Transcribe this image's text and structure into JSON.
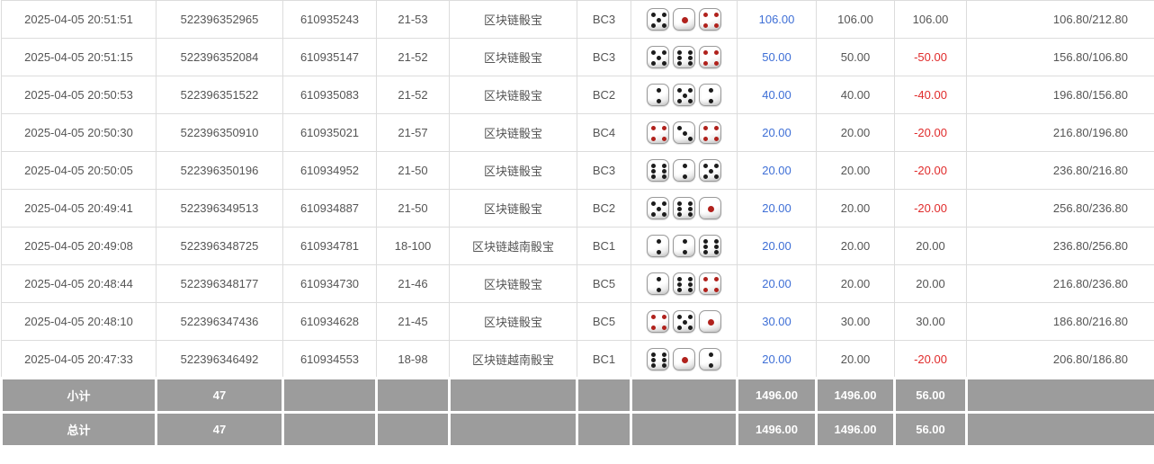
{
  "colors": {
    "bet_link_blue": "#3e6fd6",
    "negative_red": "#e02b2b",
    "body_text": "#555555",
    "footer_bg": "#9c9c9c",
    "grid_line": "#dcdcdc",
    "red_pip": "#b0211c",
    "black_pip": "#1c1c1c"
  },
  "rows": [
    {
      "time": "2025-04-05 20:51:51",
      "bet_no": "522396352965",
      "round_no": "610935243",
      "period": "21-53",
      "game": "区块链骰宝",
      "table": "BC3",
      "dice": [
        {
          "value": 5,
          "color": "black"
        },
        {
          "value": 1,
          "color": "red"
        },
        {
          "value": 4,
          "color": "red"
        }
      ],
      "bet": "106.00",
      "valid": "106.00",
      "winloss": "106.00",
      "balance": "106.80/212.80"
    },
    {
      "time": "2025-04-05 20:51:15",
      "bet_no": "522396352084",
      "round_no": "610935147",
      "period": "21-52",
      "game": "区块链骰宝",
      "table": "BC3",
      "dice": [
        {
          "value": 5,
          "color": "black"
        },
        {
          "value": 6,
          "color": "black"
        },
        {
          "value": 4,
          "color": "red"
        }
      ],
      "bet": "50.00",
      "valid": "50.00",
      "winloss": "-50.00",
      "balance": "156.80/106.80"
    },
    {
      "time": "2025-04-05 20:50:53",
      "bet_no": "522396351522",
      "round_no": "610935083",
      "period": "21-52",
      "game": "区块链骰宝",
      "table": "BC2",
      "dice": [
        {
          "value": 2,
          "color": "black"
        },
        {
          "value": 5,
          "color": "black"
        },
        {
          "value": 2,
          "color": "black"
        }
      ],
      "bet": "40.00",
      "valid": "40.00",
      "winloss": "-40.00",
      "balance": "196.80/156.80"
    },
    {
      "time": "2025-04-05 20:50:30",
      "bet_no": "522396350910",
      "round_no": "610935021",
      "period": "21-57",
      "game": "区块链骰宝",
      "table": "BC4",
      "dice": [
        {
          "value": 4,
          "color": "red"
        },
        {
          "value": 3,
          "color": "black"
        },
        {
          "value": 4,
          "color": "red"
        }
      ],
      "bet": "20.00",
      "valid": "20.00",
      "winloss": "-20.00",
      "balance": "216.80/196.80"
    },
    {
      "time": "2025-04-05 20:50:05",
      "bet_no": "522396350196",
      "round_no": "610934952",
      "period": "21-50",
      "game": "区块链骰宝",
      "table": "BC3",
      "dice": [
        {
          "value": 6,
          "color": "black"
        },
        {
          "value": 2,
          "color": "black"
        },
        {
          "value": 5,
          "color": "black"
        }
      ],
      "bet": "20.00",
      "valid": "20.00",
      "winloss": "-20.00",
      "balance": "236.80/216.80"
    },
    {
      "time": "2025-04-05 20:49:41",
      "bet_no": "522396349513",
      "round_no": "610934887",
      "period": "21-50",
      "game": "区块链骰宝",
      "table": "BC2",
      "dice": [
        {
          "value": 5,
          "color": "black"
        },
        {
          "value": 6,
          "color": "black"
        },
        {
          "value": 1,
          "color": "red"
        }
      ],
      "bet": "20.00",
      "valid": "20.00",
      "winloss": "-20.00",
      "balance": "256.80/236.80"
    },
    {
      "time": "2025-04-05 20:49:08",
      "bet_no": "522396348725",
      "round_no": "610934781",
      "period": "18-100",
      "game": "区块链越南骰宝",
      "table": "BC1",
      "dice": [
        {
          "value": 2,
          "color": "black"
        },
        {
          "value": 2,
          "color": "black"
        },
        {
          "value": 6,
          "color": "black"
        }
      ],
      "bet": "20.00",
      "valid": "20.00",
      "winloss": "20.00",
      "balance": "236.80/256.80"
    },
    {
      "time": "2025-04-05 20:48:44",
      "bet_no": "522396348177",
      "round_no": "610934730",
      "period": "21-46",
      "game": "区块链骰宝",
      "table": "BC5",
      "dice": [
        {
          "value": 2,
          "color": "black"
        },
        {
          "value": 6,
          "color": "black"
        },
        {
          "value": 4,
          "color": "red"
        }
      ],
      "bet": "20.00",
      "valid": "20.00",
      "winloss": "20.00",
      "balance": "216.80/236.80"
    },
    {
      "time": "2025-04-05 20:48:10",
      "bet_no": "522396347436",
      "round_no": "610934628",
      "period": "21-45",
      "game": "区块链骰宝",
      "table": "BC5",
      "dice": [
        {
          "value": 4,
          "color": "red"
        },
        {
          "value": 5,
          "color": "black"
        },
        {
          "value": 1,
          "color": "red"
        }
      ],
      "bet": "30.00",
      "valid": "30.00",
      "winloss": "30.00",
      "balance": "186.80/216.80"
    },
    {
      "time": "2025-04-05 20:47:33",
      "bet_no": "522396346492",
      "round_no": "610934553",
      "period": "18-98",
      "game": "区块链越南骰宝",
      "table": "BC1",
      "dice": [
        {
          "value": 6,
          "color": "black"
        },
        {
          "value": 1,
          "color": "red"
        },
        {
          "value": 2,
          "color": "black"
        }
      ],
      "bet": "20.00",
      "valid": "20.00",
      "winloss": "-20.00",
      "balance": "206.80/186.80"
    }
  ],
  "footer": {
    "subtotal": {
      "label": "小计",
      "count": "47",
      "bet": "1496.00",
      "valid": "1496.00",
      "winloss": "56.00"
    },
    "total": {
      "label": "总计",
      "count": "47",
      "bet": "1496.00",
      "valid": "1496.00",
      "winloss": "56.00"
    }
  }
}
